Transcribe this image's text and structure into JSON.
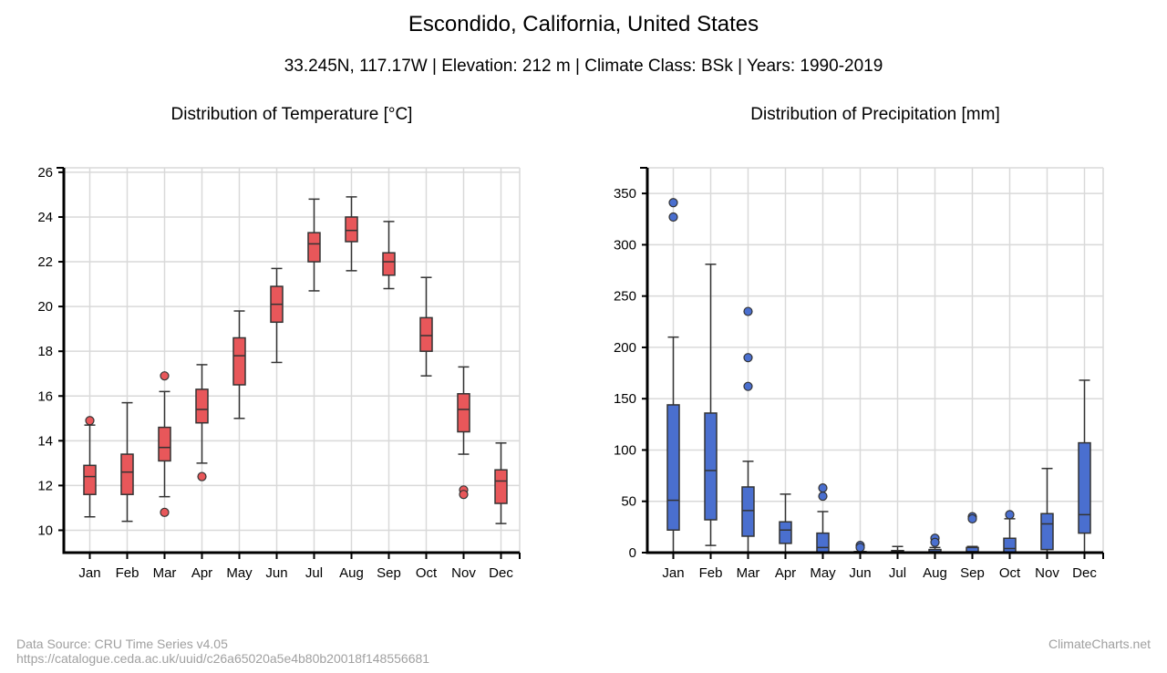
{
  "header": {
    "title": "Escondido, California, United States",
    "subtitle": "33.245N, 117.17W | Elevation: 212 m | Climate Class: BSk | Years: 1990-2019"
  },
  "footer": {
    "source_line1": "Data Source: CRU Time Series v4.05",
    "source_line2": "https://catalogue.ceda.ac.uk/uuid/c26a65020a5e4b80b20018f148556681",
    "brand": "ClimateCharts.net"
  },
  "colors": {
    "temperature_box": "#e8575a",
    "precipitation_box": "#4a6fcf",
    "grid": "#d9d9d9",
    "axis": "#000000"
  },
  "chart_data": [
    {
      "type": "box",
      "title": "Distribution of Temperature [°C]",
      "categories": [
        "Jan",
        "Feb",
        "Mar",
        "Apr",
        "May",
        "Jun",
        "Jul",
        "Aug",
        "Sep",
        "Oct",
        "Nov",
        "Dec"
      ],
      "ylim": [
        9,
        26.2
      ],
      "yticks": [
        10,
        12,
        14,
        16,
        18,
        20,
        22,
        24,
        26
      ],
      "grid": true,
      "series": [
        {
          "min": 10.6,
          "q1": 11.6,
          "median": 12.4,
          "q3": 12.9,
          "max": 14.7,
          "outliers": [
            14.9
          ]
        },
        {
          "min": 10.4,
          "q1": 11.6,
          "median": 12.6,
          "q3": 13.4,
          "max": 15.7,
          "outliers": []
        },
        {
          "min": 11.5,
          "q1": 13.1,
          "median": 13.7,
          "q3": 14.6,
          "max": 16.2,
          "outliers": [
            16.9,
            10.8
          ]
        },
        {
          "min": 13.0,
          "q1": 14.8,
          "median": 15.4,
          "q3": 16.3,
          "max": 17.4,
          "outliers": [
            12.4
          ]
        },
        {
          "min": 15.0,
          "q1": 16.5,
          "median": 17.8,
          "q3": 18.6,
          "max": 19.8,
          "outliers": []
        },
        {
          "min": 17.5,
          "q1": 19.3,
          "median": 20.1,
          "q3": 20.9,
          "max": 21.7,
          "outliers": []
        },
        {
          "min": 20.7,
          "q1": 22.0,
          "median": 22.8,
          "q3": 23.3,
          "max": 24.8,
          "outliers": []
        },
        {
          "min": 21.6,
          "q1": 22.9,
          "median": 23.4,
          "q3": 24.0,
          "max": 24.9,
          "outliers": []
        },
        {
          "min": 20.8,
          "q1": 21.4,
          "median": 22.0,
          "q3": 22.4,
          "max": 23.8,
          "outliers": []
        },
        {
          "min": 16.9,
          "q1": 18.0,
          "median": 18.7,
          "q3": 19.5,
          "max": 21.3,
          "outliers": []
        },
        {
          "min": 13.4,
          "q1": 14.4,
          "median": 15.4,
          "q3": 16.1,
          "max": 17.3,
          "outliers": [
            11.8,
            11.6
          ]
        },
        {
          "min": 10.3,
          "q1": 11.2,
          "median": 12.2,
          "q3": 12.7,
          "max": 13.9,
          "outliers": []
        }
      ]
    },
    {
      "type": "box",
      "title": "Distribution of Precipitation [mm]",
      "categories": [
        "Jan",
        "Feb",
        "Mar",
        "Apr",
        "May",
        "Jun",
        "Jul",
        "Aug",
        "Sep",
        "Oct",
        "Nov",
        "Dec"
      ],
      "ylim": [
        0,
        375
      ],
      "yticks": [
        0,
        50,
        100,
        150,
        200,
        250,
        300,
        350
      ],
      "grid": true,
      "series": [
        {
          "min": 0,
          "q1": 22,
          "median": 51,
          "q3": 144,
          "max": 210,
          "outliers": [
            341,
            327
          ]
        },
        {
          "min": 7,
          "q1": 32,
          "median": 80,
          "q3": 136,
          "max": 281,
          "outliers": []
        },
        {
          "min": 0,
          "q1": 16,
          "median": 41,
          "q3": 64,
          "max": 89,
          "outliers": [
            235,
            190,
            162
          ]
        },
        {
          "min": 0,
          "q1": 9,
          "median": 22,
          "q3": 30,
          "max": 57,
          "outliers": []
        },
        {
          "min": 0,
          "q1": 0,
          "median": 5,
          "q3": 19,
          "max": 40,
          "outliers": [
            63,
            55
          ]
        },
        {
          "min": 0,
          "q1": 0,
          "median": 0,
          "q3": 1,
          "max": 1,
          "outliers": [
            7,
            5
          ]
        },
        {
          "min": 0,
          "q1": 0,
          "median": 0,
          "q3": 2,
          "max": 6,
          "outliers": []
        },
        {
          "min": 0,
          "q1": 0,
          "median": 1,
          "q3": 3,
          "max": 5,
          "outliers": [
            14,
            10
          ]
        },
        {
          "min": 0,
          "q1": 0,
          "median": 1,
          "q3": 5,
          "max": 6,
          "outliers": [
            35,
            33
          ]
        },
        {
          "min": 0,
          "q1": 0,
          "median": 4,
          "q3": 14,
          "max": 33,
          "outliers": [
            37
          ]
        },
        {
          "min": 0,
          "q1": 3,
          "median": 28,
          "q3": 38,
          "max": 82,
          "outliers": []
        },
        {
          "min": 0,
          "q1": 19,
          "median": 37,
          "q3": 107,
          "max": 168,
          "outliers": []
        }
      ]
    }
  ]
}
